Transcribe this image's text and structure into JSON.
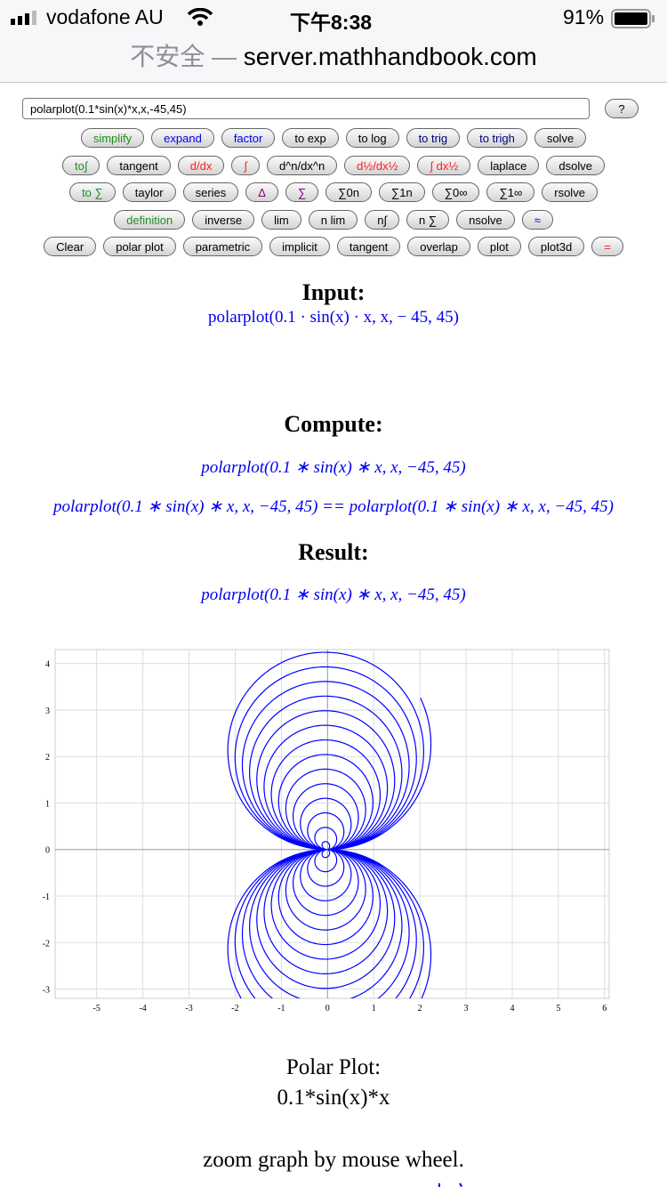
{
  "status_bar": {
    "carrier": "vodafone AU",
    "time": "下午8:38",
    "battery": "91%"
  },
  "browser": {
    "insecure_label": "不安全 —",
    "domain": "server.mathhandbook.com"
  },
  "input": {
    "value": "polarplot(0.1*sin(x)*x,x,-45,45)",
    "help_label": "?"
  },
  "button_rows": [
    [
      {
        "label": "simplify",
        "color": "#228b22"
      },
      {
        "label": "expand",
        "color": "#0000ee"
      },
      {
        "label": "factor",
        "color": "#0000ee"
      },
      {
        "label": "to exp",
        "color": "#000"
      },
      {
        "label": "to log",
        "color": "#000"
      },
      {
        "label": "to trig",
        "color": "#000080"
      },
      {
        "label": "to trigh",
        "color": "#000080"
      },
      {
        "label": "solve",
        "color": "#000"
      }
    ],
    [
      {
        "label": "to∫",
        "color": "#228b22"
      },
      {
        "label": "tangent",
        "color": "#000"
      },
      {
        "label": "d/dx",
        "color": "#ff2020"
      },
      {
        "label": "∫",
        "color": "#ff2020"
      },
      {
        "label": "d^n/dx^n",
        "color": "#000"
      },
      {
        "label": "d½/dx½",
        "color": "#ff2020"
      },
      {
        "label": "∫ dx½",
        "color": "#ff2020"
      },
      {
        "label": "laplace",
        "color": "#000"
      },
      {
        "label": "dsolve",
        "color": "#000"
      }
    ],
    [
      {
        "label": "to ∑",
        "color": "#228b22"
      },
      {
        "label": "taylor",
        "color": "#000"
      },
      {
        "label": "series",
        "color": "#000"
      },
      {
        "label": "Δ",
        "color": "#800080"
      },
      {
        "label": "∑",
        "color": "#800080"
      },
      {
        "label": "∑0n",
        "color": "#000"
      },
      {
        "label": "∑1n",
        "color": "#000"
      },
      {
        "label": "∑0∞",
        "color": "#000"
      },
      {
        "label": "∑1∞",
        "color": "#000"
      },
      {
        "label": "rsolve",
        "color": "#000"
      }
    ],
    [
      {
        "label": "definition",
        "color": "#228b22"
      },
      {
        "label": "inverse",
        "color": "#000"
      },
      {
        "label": "lim",
        "color": "#000"
      },
      {
        "label": "n lim",
        "color": "#000"
      },
      {
        "label": "n∫",
        "color": "#000"
      },
      {
        "label": "n ∑",
        "color": "#000"
      },
      {
        "label": "nsolve",
        "color": "#000"
      },
      {
        "label": "≈",
        "color": "#0000ee"
      }
    ],
    [
      {
        "label": "Clear",
        "color": "#000"
      },
      {
        "label": "polar plot",
        "color": "#000"
      },
      {
        "label": "parametric",
        "color": "#000"
      },
      {
        "label": "implicit",
        "color": "#000"
      },
      {
        "label": "tangent",
        "color": "#000"
      },
      {
        "label": "overlap",
        "color": "#000"
      },
      {
        "label": "plot",
        "color": "#000"
      },
      {
        "label": "plot3d",
        "color": "#000"
      },
      {
        "label": "=",
        "color": "#ff2020"
      }
    ]
  ],
  "input_section": {
    "heading": "Input:",
    "expr": "polarplot(0.1 · sin(x) · x, x,  − 45, 45)"
  },
  "compute_section": {
    "heading": "Compute:",
    "expr": "polarplot(0.1 ∗ sin(x) ∗ x, x, −45, 45)",
    "equation": "polarplot(0.1 ∗ sin(x) ∗ x, x, −45, 45) == polarplot(0.1 ∗ sin(x) ∗ x, x, −45, 45)"
  },
  "result_section": {
    "heading": "Result:",
    "expr": "polarplot(0.1 ∗ sin(x) ∗ x, x, −45, 45)"
  },
  "chart_data": {
    "type": "line",
    "subtype": "polar",
    "function": "r = 0.1*sin(t)*t",
    "t_range": [
      -45,
      45
    ],
    "xlim": [
      -5.9,
      6.1
    ],
    "ylim": [
      -3.2,
      4.3
    ],
    "x_ticks": [
      "-5",
      "-4",
      "-3",
      "-2",
      "-1",
      "0",
      "1",
      "2",
      "3",
      "4",
      "5",
      "6"
    ],
    "y_ticks": [
      "4",
      "3",
      "2",
      "1",
      "0",
      "-1",
      "-2",
      "-3"
    ],
    "grid": true,
    "line_color": "#0000ff"
  },
  "caption": {
    "title": "Polar Plot:",
    "function": "0.1*sin(x)*x",
    "hint": "zoom graph by mouse wheel."
  },
  "footer": {
    "last_link": "中文"
  }
}
